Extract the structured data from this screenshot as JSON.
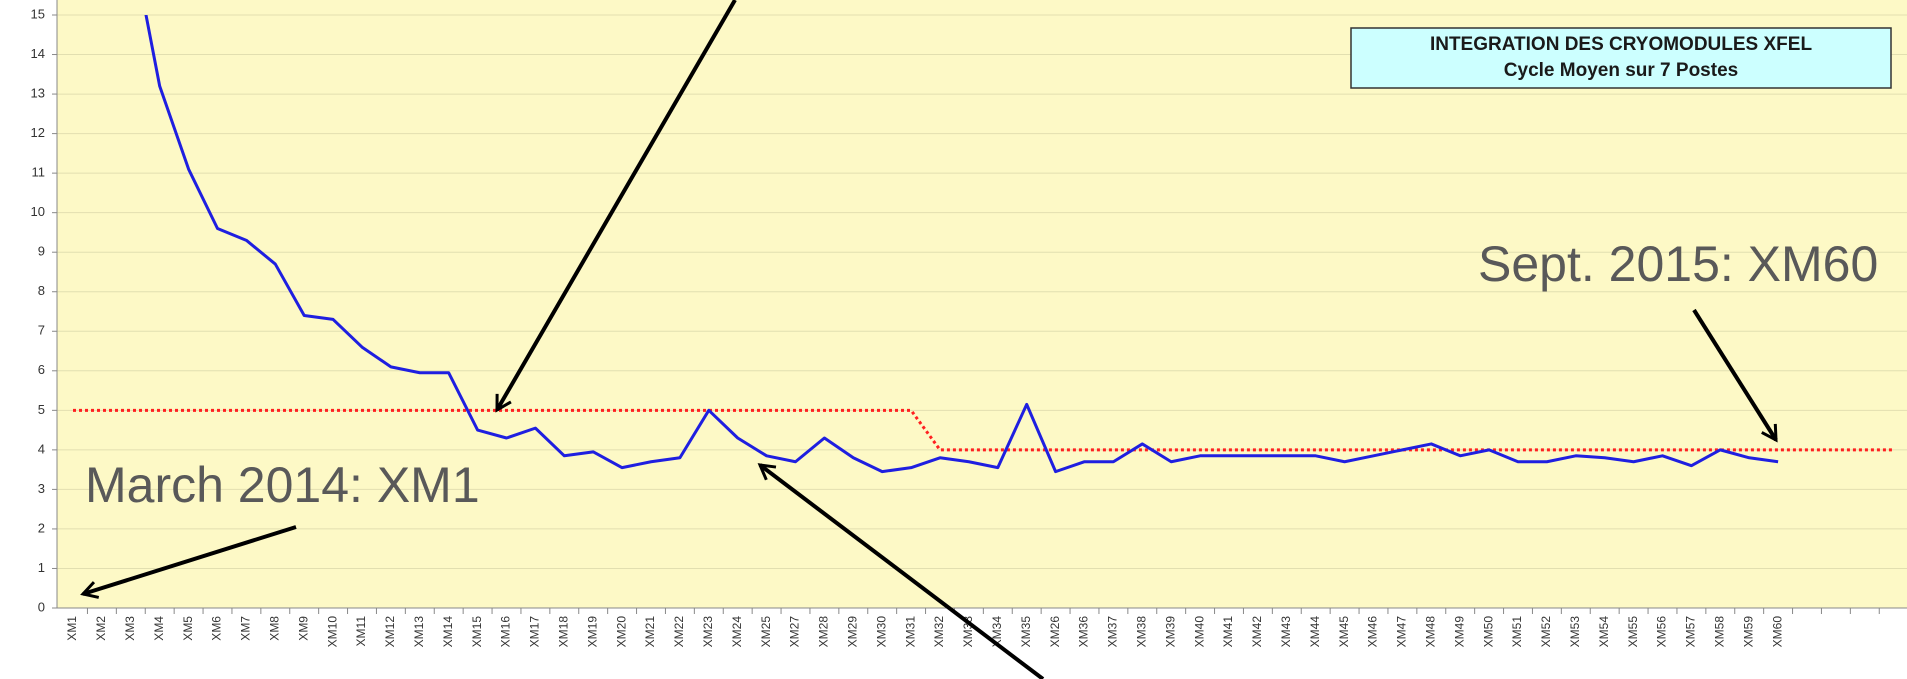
{
  "chart_data": {
    "type": "line",
    "box_title": [
      "INTEGRATION DES CRYOMODULES XFEL",
      "Cycle Moyen sur 7 Postes"
    ],
    "annotations": [
      "Sept. 2015: XM60",
      "March 2014: XM1"
    ],
    "categories": [
      "XM1",
      "XM2",
      "XM3",
      "XM4",
      "XM5",
      "XM6",
      "XM7",
      "XM8",
      "XM9",
      "XM10",
      "XM11",
      "XM12",
      "XM13",
      "XM14",
      "XM15",
      "XM16",
      "XM17",
      "XM18",
      "XM19",
      "XM20",
      "XM21",
      "XM22",
      "XM23",
      "XM24",
      "XM25",
      "XM27",
      "XM28",
      "XM29",
      "XM30",
      "XM31",
      "XM32",
      "XM33",
      "XM34",
      "XM35",
      "XM26",
      "XM36",
      "XM37",
      "XM38",
      "XM39",
      "XM40",
      "XM41",
      "XM42",
      "XM43",
      "XM44",
      "XM45",
      "XM46",
      "XM47",
      "XM48",
      "XM49",
      "XM50",
      "XM51",
      "XM52",
      "XM53",
      "XM54",
      "XM55",
      "XM56",
      "XM57",
      "XM58",
      "XM59",
      "XM60",
      null,
      null,
      null,
      null
    ],
    "series": [
      {
        "color": "#1f1fe0",
        "style": "solid",
        "values": [
          null,
          null,
          17,
          13.2,
          11.1,
          9.6,
          9.3,
          8.7,
          7.4,
          7.3,
          6.6,
          6.1,
          5.95,
          5.95,
          4.5,
          4.3,
          4.55,
          3.85,
          3.95,
          3.55,
          3.7,
          3.8,
          5.0,
          4.3,
          3.85,
          3.7,
          4.3,
          3.8,
          3.45,
          3.55,
          3.8,
          3.7,
          3.55,
          5.15,
          3.45,
          3.7,
          3.7,
          4.15,
          3.7,
          3.85,
          3.85,
          3.85,
          3.85,
          3.85,
          3.7,
          3.85,
          4.0,
          4.15,
          3.85,
          4.0,
          3.7,
          3.7,
          3.85,
          3.8,
          3.7,
          3.85,
          3.6,
          4.0,
          3.8,
          3.7,
          null,
          null,
          null,
          null
        ]
      },
      {
        "color": "#ff2020",
        "style": "dotted",
        "values": [
          5,
          5,
          5,
          5,
          5,
          5,
          5,
          5,
          5,
          5,
          5,
          5,
          5,
          5,
          5,
          5,
          5,
          5,
          5,
          5,
          5,
          5,
          5,
          5,
          5,
          5,
          5,
          5,
          5,
          5,
          4,
          4,
          4,
          4,
          4,
          4,
          4,
          4,
          4,
          4,
          4,
          4,
          4,
          4,
          4,
          4,
          4,
          4,
          4,
          4,
          4,
          4,
          4,
          4,
          4,
          4,
          4,
          4,
          4,
          4,
          4,
          4,
          4,
          4
        ]
      }
    ],
    "ylim": [
      0,
      15
    ],
    "yticks": [
      0,
      1,
      2,
      3,
      4,
      5,
      6,
      7,
      8,
      9,
      10,
      11,
      12,
      13,
      14,
      15
    ],
    "grid": true,
    "background": "#fdf9c6"
  }
}
